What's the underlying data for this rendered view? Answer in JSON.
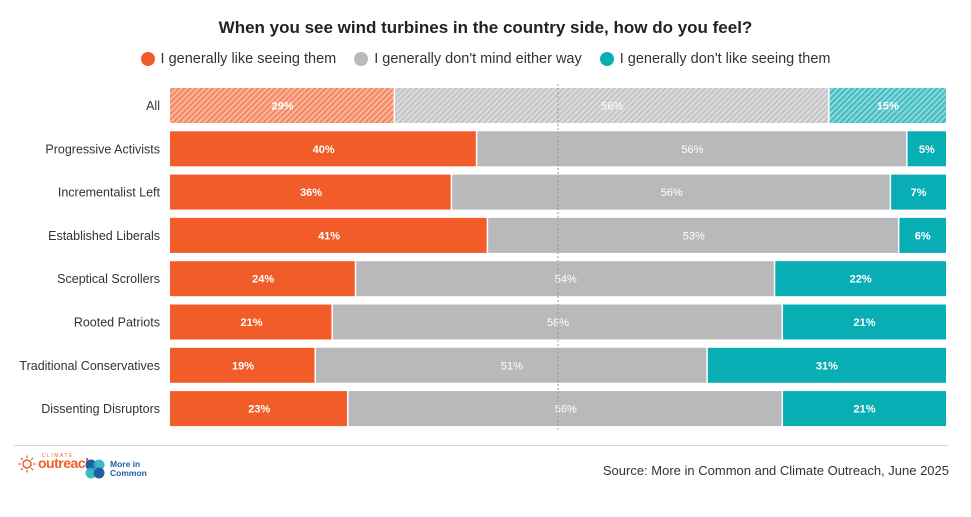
{
  "chart_data": {
    "type": "bar",
    "orientation": "horizontal",
    "stacked": true,
    "title": "When you see wind turbines in the country side, how do you feel?",
    "categories": [
      "All",
      "Progressive Activists",
      "Incrementalist Left",
      "Established Liberals",
      "Sceptical Scrollers",
      "Rooted Patriots",
      "Traditional Conservatives",
      "Dissenting Disruptors"
    ],
    "series": [
      {
        "name": "I generally like seeing them",
        "color": "#f25c29",
        "values": [
          29,
          40,
          36,
          41,
          24,
          21,
          19,
          23
        ],
        "labels": [
          "29%",
          "40%",
          "36%",
          "41%",
          "24%",
          "21%",
          "19%",
          "23%"
        ]
      },
      {
        "name": "I generally don't mind either way",
        "color": "#b9b9bc",
        "values": [
          56,
          56,
          56,
          53,
          54,
          58,
          51,
          56
        ],
        "labels": [
          "56%",
          "56%",
          "56%",
          "53%",
          "54%",
          "58%",
          "51%",
          "56%"
        ]
      },
      {
        "name": "I generally don't like seeing them",
        "color": "#09adb4",
        "values": [
          15,
          5,
          7,
          6,
          22,
          21,
          31,
          21
        ],
        "labels": [
          "15%",
          "5%",
          "7%",
          "6%",
          "22%",
          "21%",
          "31%",
          "21%"
        ]
      }
    ],
    "hatched_categories": [
      "All"
    ],
    "xlim": [
      0,
      100
    ],
    "reference_line": 50,
    "legend_position": "top"
  },
  "footer": {
    "source": "Source: More in Common and Climate Outreach, June 2025",
    "logo_climate_small": "CLIMATE",
    "logo_climate_big": "outreach",
    "logo_mic_line1": "More in",
    "logo_mic_line2": "Common"
  }
}
